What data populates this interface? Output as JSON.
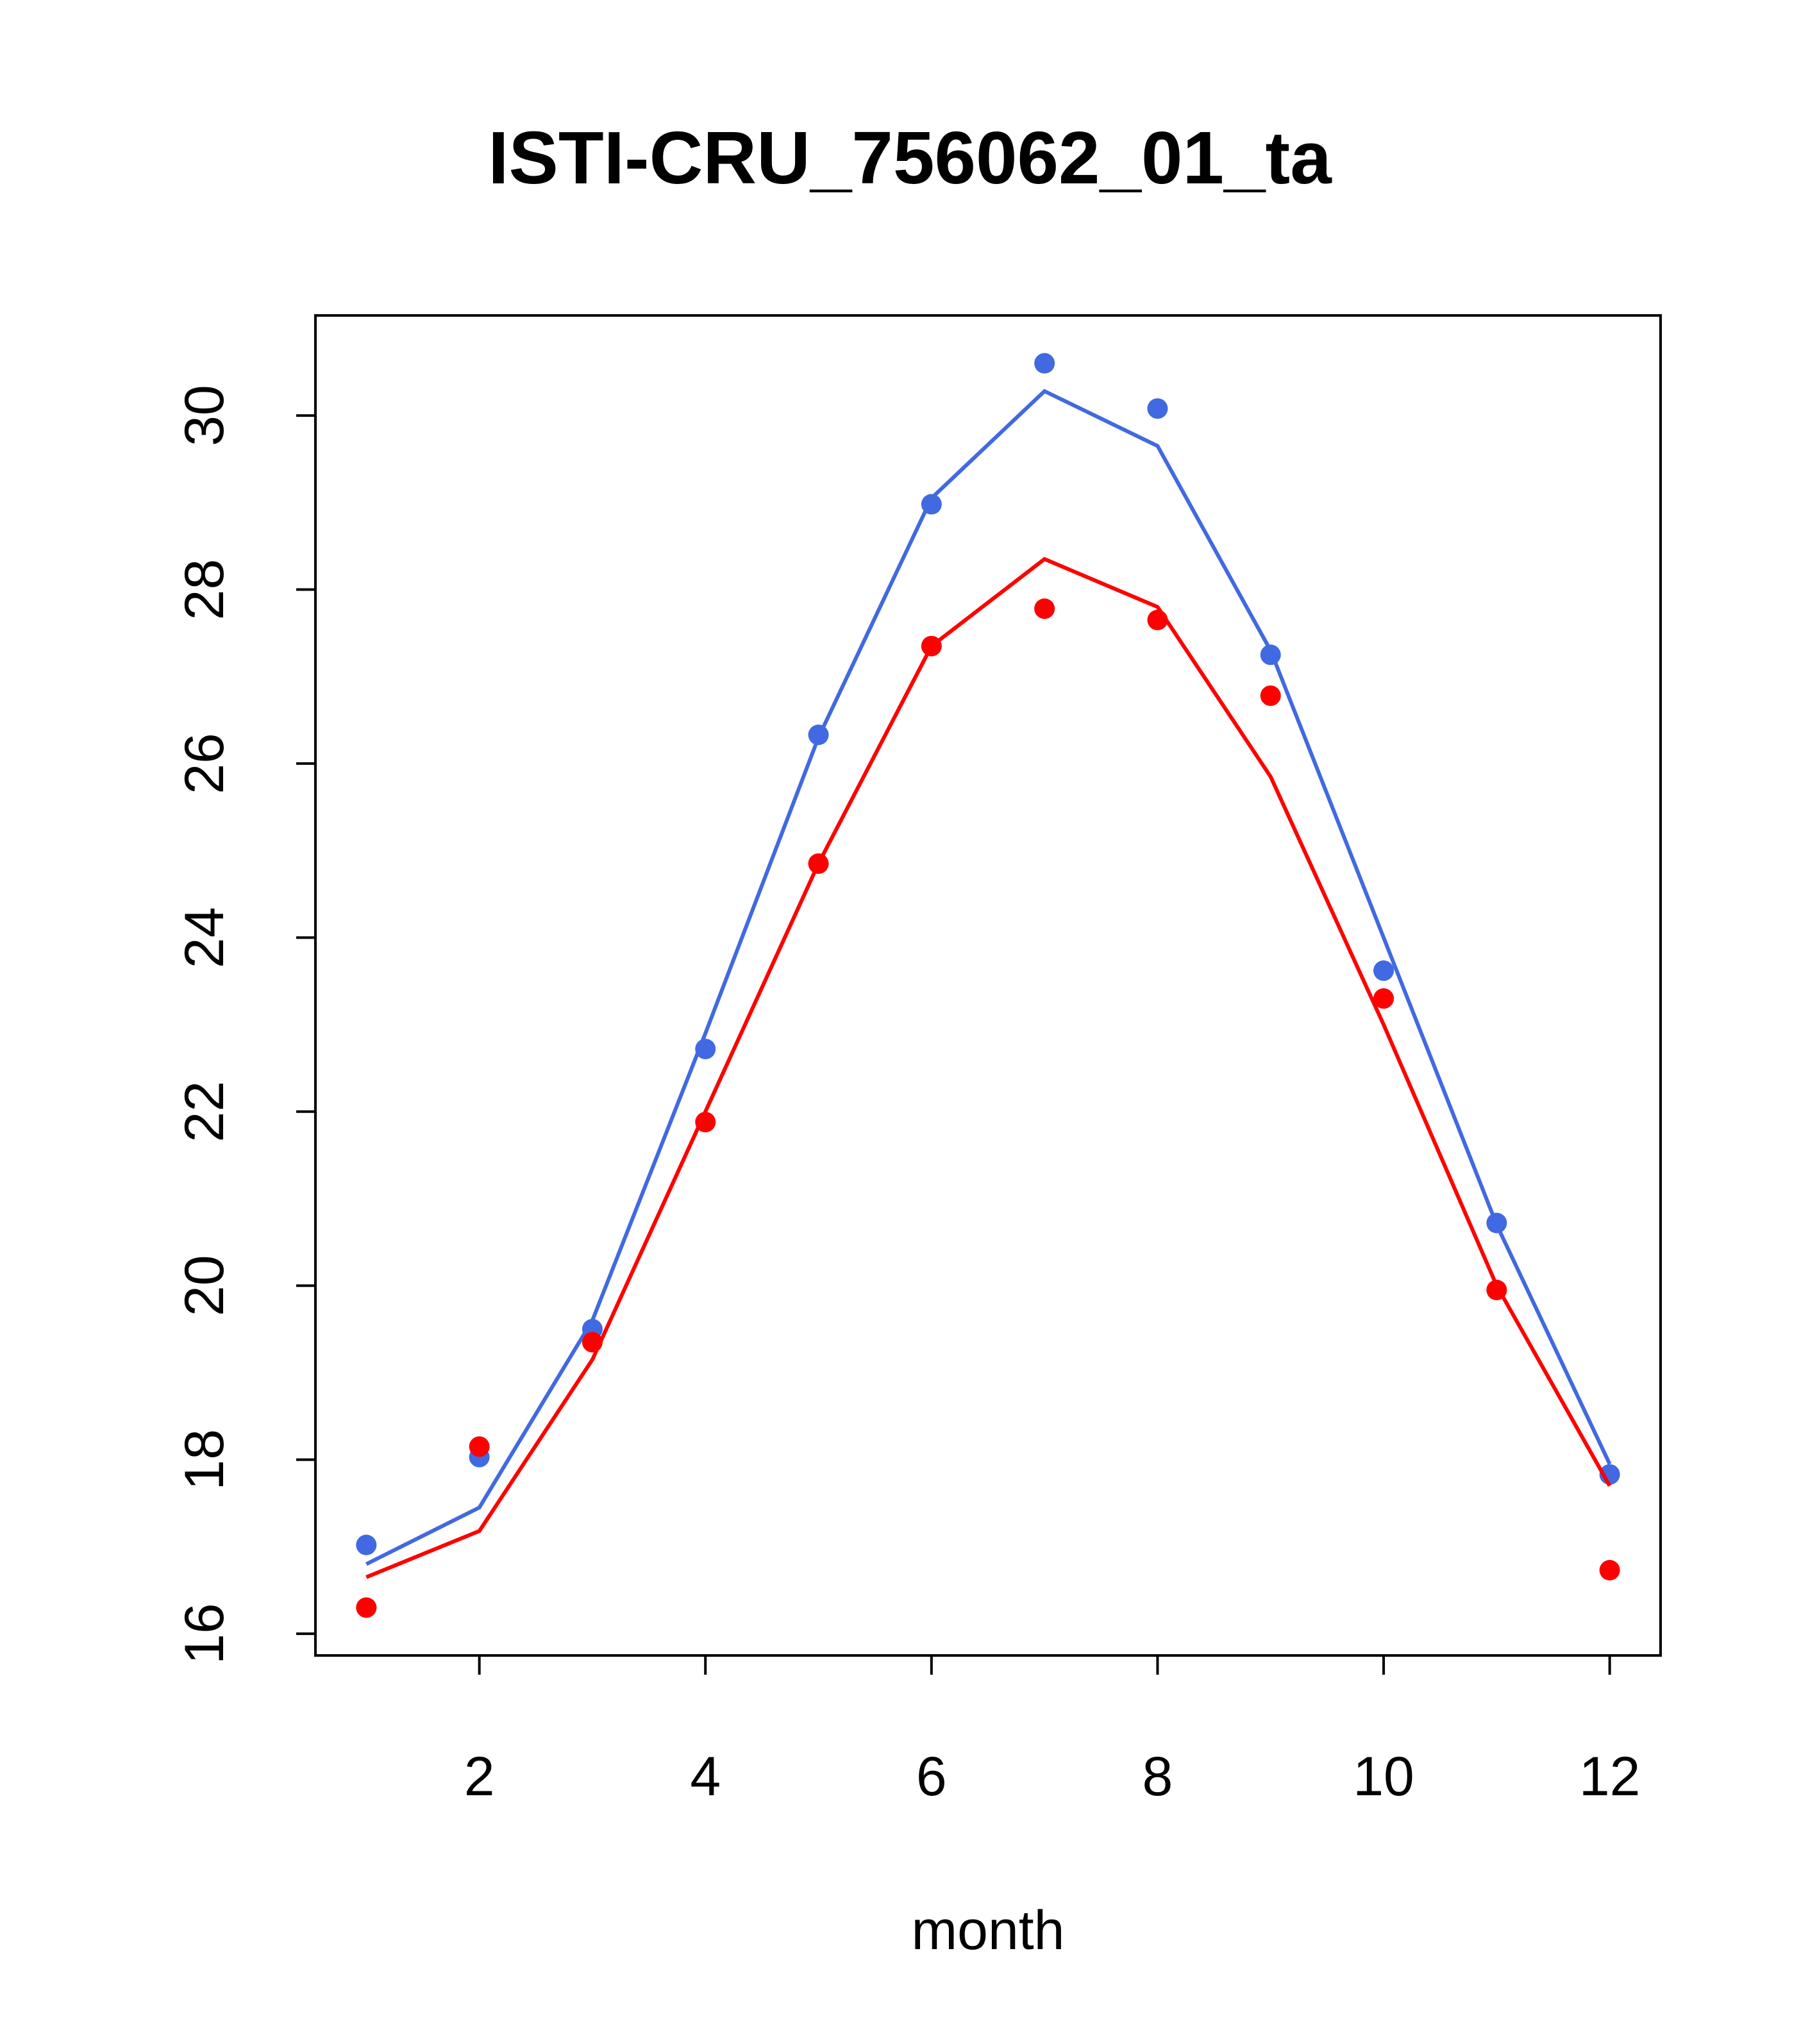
{
  "chart_data": {
    "type": "line",
    "title": "ISTI-CRU_756062_01_ta",
    "xlabel": "month",
    "ylabel": "",
    "xlim": [
      0.55,
      12.45
    ],
    "ylim": [
      15.75,
      31.15
    ],
    "x_ticks": [
      2,
      4,
      6,
      8,
      10,
      12
    ],
    "y_ticks": [
      16,
      18,
      20,
      22,
      24,
      26,
      28,
      30
    ],
    "grid": false,
    "x": [
      1,
      2,
      3,
      4,
      5,
      6,
      7,
      8,
      9,
      10,
      11,
      12
    ],
    "series": [
      {
        "color": "#4169E1",
        "line": [
          16.8,
          17.45,
          19.6,
          22.9,
          26.3,
          29.05,
          30.28,
          29.65,
          27.3,
          24.0,
          20.7,
          17.95
        ],
        "points": [
          17.02,
          18.03,
          19.5,
          22.72,
          26.33,
          28.98,
          30.6,
          30.08,
          27.25,
          23.62,
          20.72,
          17.83
        ]
      },
      {
        "color": "#FF0000",
        "line": [
          16.65,
          17.18,
          19.15,
          22.0,
          24.85,
          27.35,
          28.35,
          27.8,
          25.85,
          23.0,
          20.0,
          17.7
        ],
        "points": [
          16.3,
          18.15,
          19.35,
          21.88,
          24.85,
          27.35,
          27.78,
          27.65,
          26.78,
          23.3,
          19.95,
          16.73
        ]
      }
    ]
  }
}
